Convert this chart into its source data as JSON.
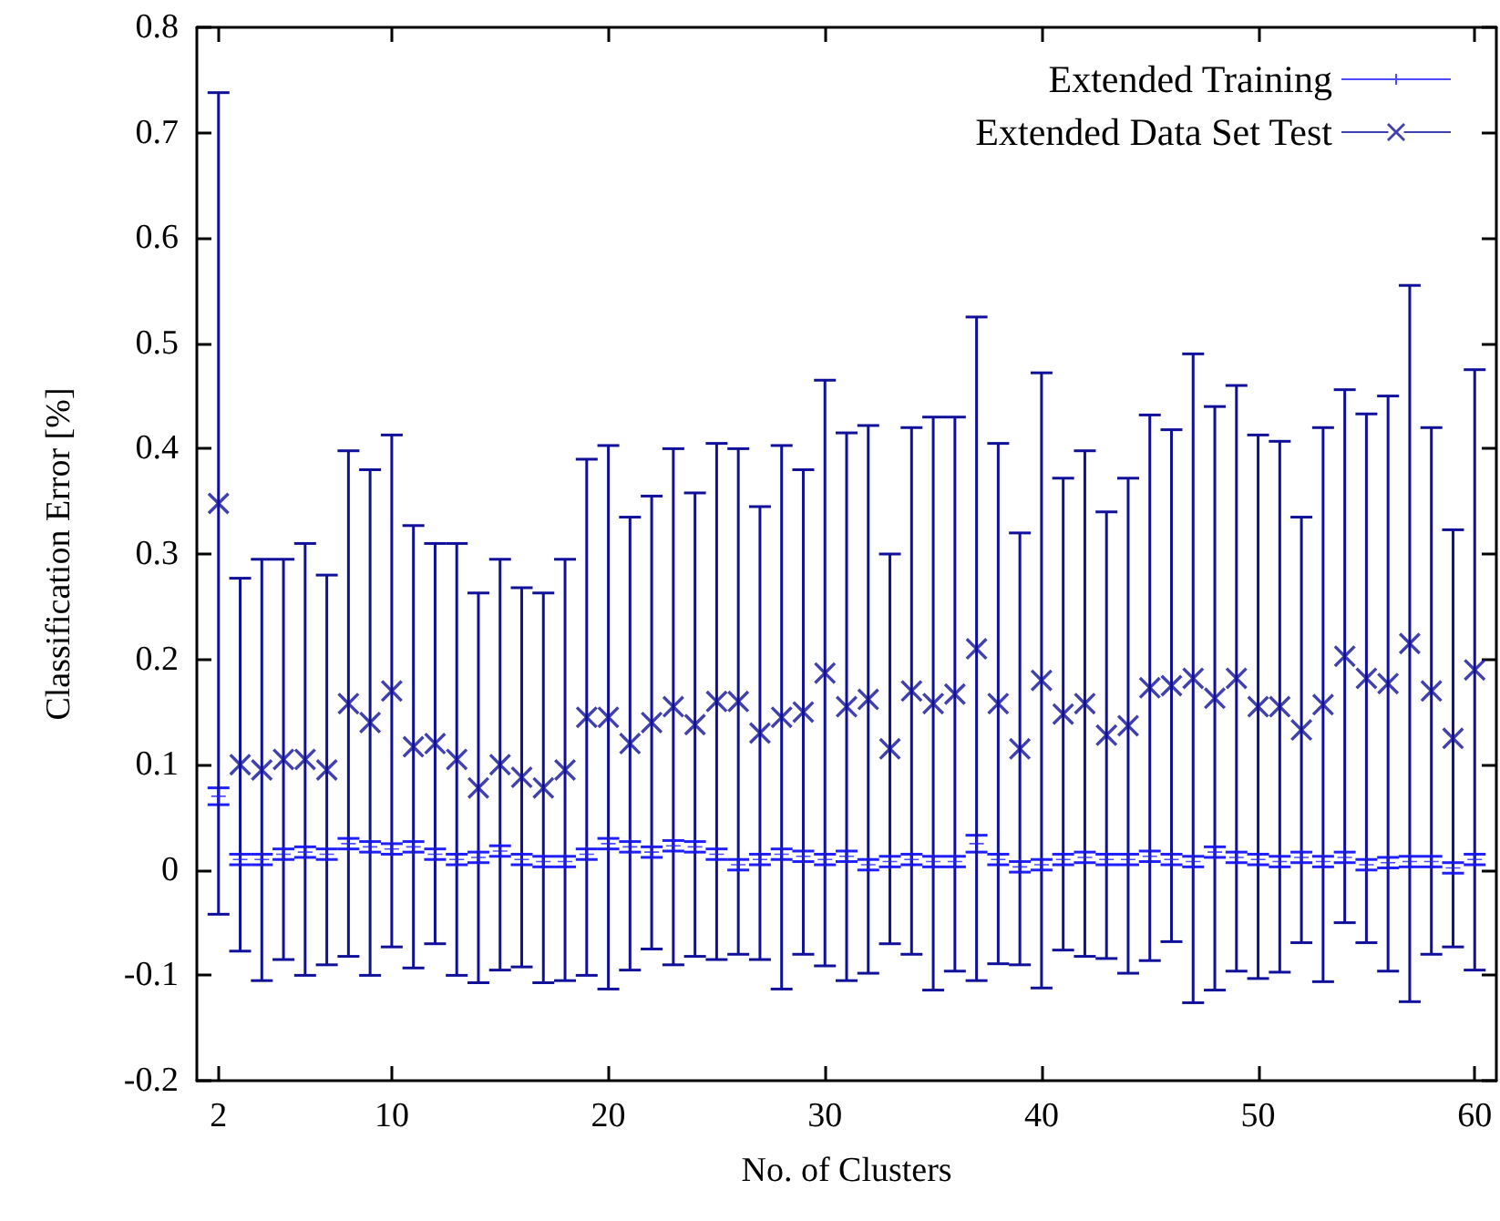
{
  "chart_data": {
    "type": "scatter",
    "xlabel": "No. of Clusters",
    "ylabel": "Classification Error [%]",
    "x": [
      2,
      3,
      4,
      5,
      6,
      7,
      8,
      9,
      10,
      11,
      12,
      13,
      14,
      15,
      16,
      17,
      18,
      19,
      20,
      21,
      22,
      23,
      24,
      25,
      26,
      27,
      28,
      29,
      30,
      31,
      32,
      33,
      34,
      35,
      36,
      37,
      38,
      39,
      40,
      41,
      42,
      43,
      44,
      45,
      46,
      47,
      48,
      49,
      50,
      51,
      52,
      53,
      54,
      55,
      56,
      57,
      58,
      59,
      60
    ],
    "xlim": [
      1,
      61
    ],
    "xticks": [
      2,
      10,
      20,
      30,
      40,
      50,
      60
    ],
    "ylim": [
      -0.2,
      0.8
    ],
    "yticks": [
      -0.2,
      -0.1,
      0,
      0.1,
      0.2,
      0.3,
      0.4,
      0.5,
      0.6,
      0.7,
      0.8
    ],
    "grid": false,
    "legend": "top right",
    "series": [
      {
        "name": "Extended Training",
        "color": "#2020ff",
        "values": [
          0.07,
          0.01,
          0.01,
          0.015,
          0.017,
          0.015,
          0.025,
          0.022,
          0.02,
          0.022,
          0.015,
          0.01,
          0.012,
          0.018,
          0.01,
          0.008,
          0.008,
          0.015,
          0.025,
          0.022,
          0.017,
          0.023,
          0.022,
          0.015,
          0.005,
          0.01,
          0.015,
          0.013,
          0.01,
          0.013,
          0.005,
          0.008,
          0.01,
          0.008,
          0.008,
          0.025,
          0.01,
          0.003,
          0.005,
          0.01,
          0.012,
          0.01,
          0.01,
          0.013,
          0.01,
          0.008,
          0.017,
          0.012,
          0.01,
          0.008,
          0.012,
          0.008,
          0.012,
          0.005,
          0.007,
          0.008,
          0.008,
          0.002,
          0.01
        ],
        "errors": [
          0.008,
          0.005,
          0.005,
          0.005,
          0.005,
          0.005,
          0.005,
          0.005,
          0.005,
          0.005,
          0.005,
          0.005,
          0.005,
          0.005,
          0.005,
          0.005,
          0.005,
          0.005,
          0.005,
          0.005,
          0.005,
          0.005,
          0.005,
          0.005,
          0.005,
          0.005,
          0.005,
          0.005,
          0.005,
          0.005,
          0.005,
          0.005,
          0.005,
          0.005,
          0.005,
          0.008,
          0.005,
          0.005,
          0.005,
          0.005,
          0.005,
          0.005,
          0.005,
          0.005,
          0.005,
          0.005,
          0.005,
          0.005,
          0.005,
          0.005,
          0.005,
          0.005,
          0.005,
          0.005,
          0.005,
          0.005,
          0.005,
          0.005,
          0.005
        ]
      },
      {
        "name": "Extended Data Set Test",
        "color": "#10109a",
        "marker": "cross",
        "values": [
          0.348,
          0.1,
          0.095,
          0.105,
          0.105,
          0.095,
          0.158,
          0.14,
          0.17,
          0.117,
          0.12,
          0.105,
          0.078,
          0.1,
          0.088,
          0.078,
          0.095,
          0.145,
          0.145,
          0.12,
          0.14,
          0.155,
          0.138,
          0.16,
          0.16,
          0.13,
          0.145,
          0.15,
          0.187,
          0.155,
          0.162,
          0.115,
          0.17,
          0.158,
          0.167,
          0.21,
          0.158,
          0.115,
          0.18,
          0.148,
          0.158,
          0.128,
          0.137,
          0.173,
          0.175,
          0.182,
          0.163,
          0.182,
          0.155,
          0.155,
          0.133,
          0.157,
          0.203,
          0.182,
          0.177,
          0.215,
          0.17,
          0.125,
          0.19
        ],
        "errors": [
          0.39,
          0.177,
          0.2,
          0.19,
          0.205,
          0.185,
          0.24,
          0.24,
          0.243,
          0.21,
          0.19,
          0.205,
          0.185,
          0.195,
          0.18,
          0.185,
          0.2,
          0.245,
          0.258,
          0.215,
          0.215,
          0.245,
          0.22,
          0.245,
          0.24,
          0.215,
          0.258,
          0.23,
          0.278,
          0.26,
          0.26,
          0.185,
          0.25,
          0.272,
          0.263,
          0.315,
          0.247,
          0.205,
          0.292,
          0.224,
          0.24,
          0.212,
          0.235,
          0.259,
          0.243,
          0.308,
          0.277,
          0.278,
          0.258,
          0.252,
          0.202,
          0.263,
          0.253,
          0.251,
          0.273,
          0.34,
          0.25,
          0.198,
          0.285
        ]
      }
    ]
  }
}
